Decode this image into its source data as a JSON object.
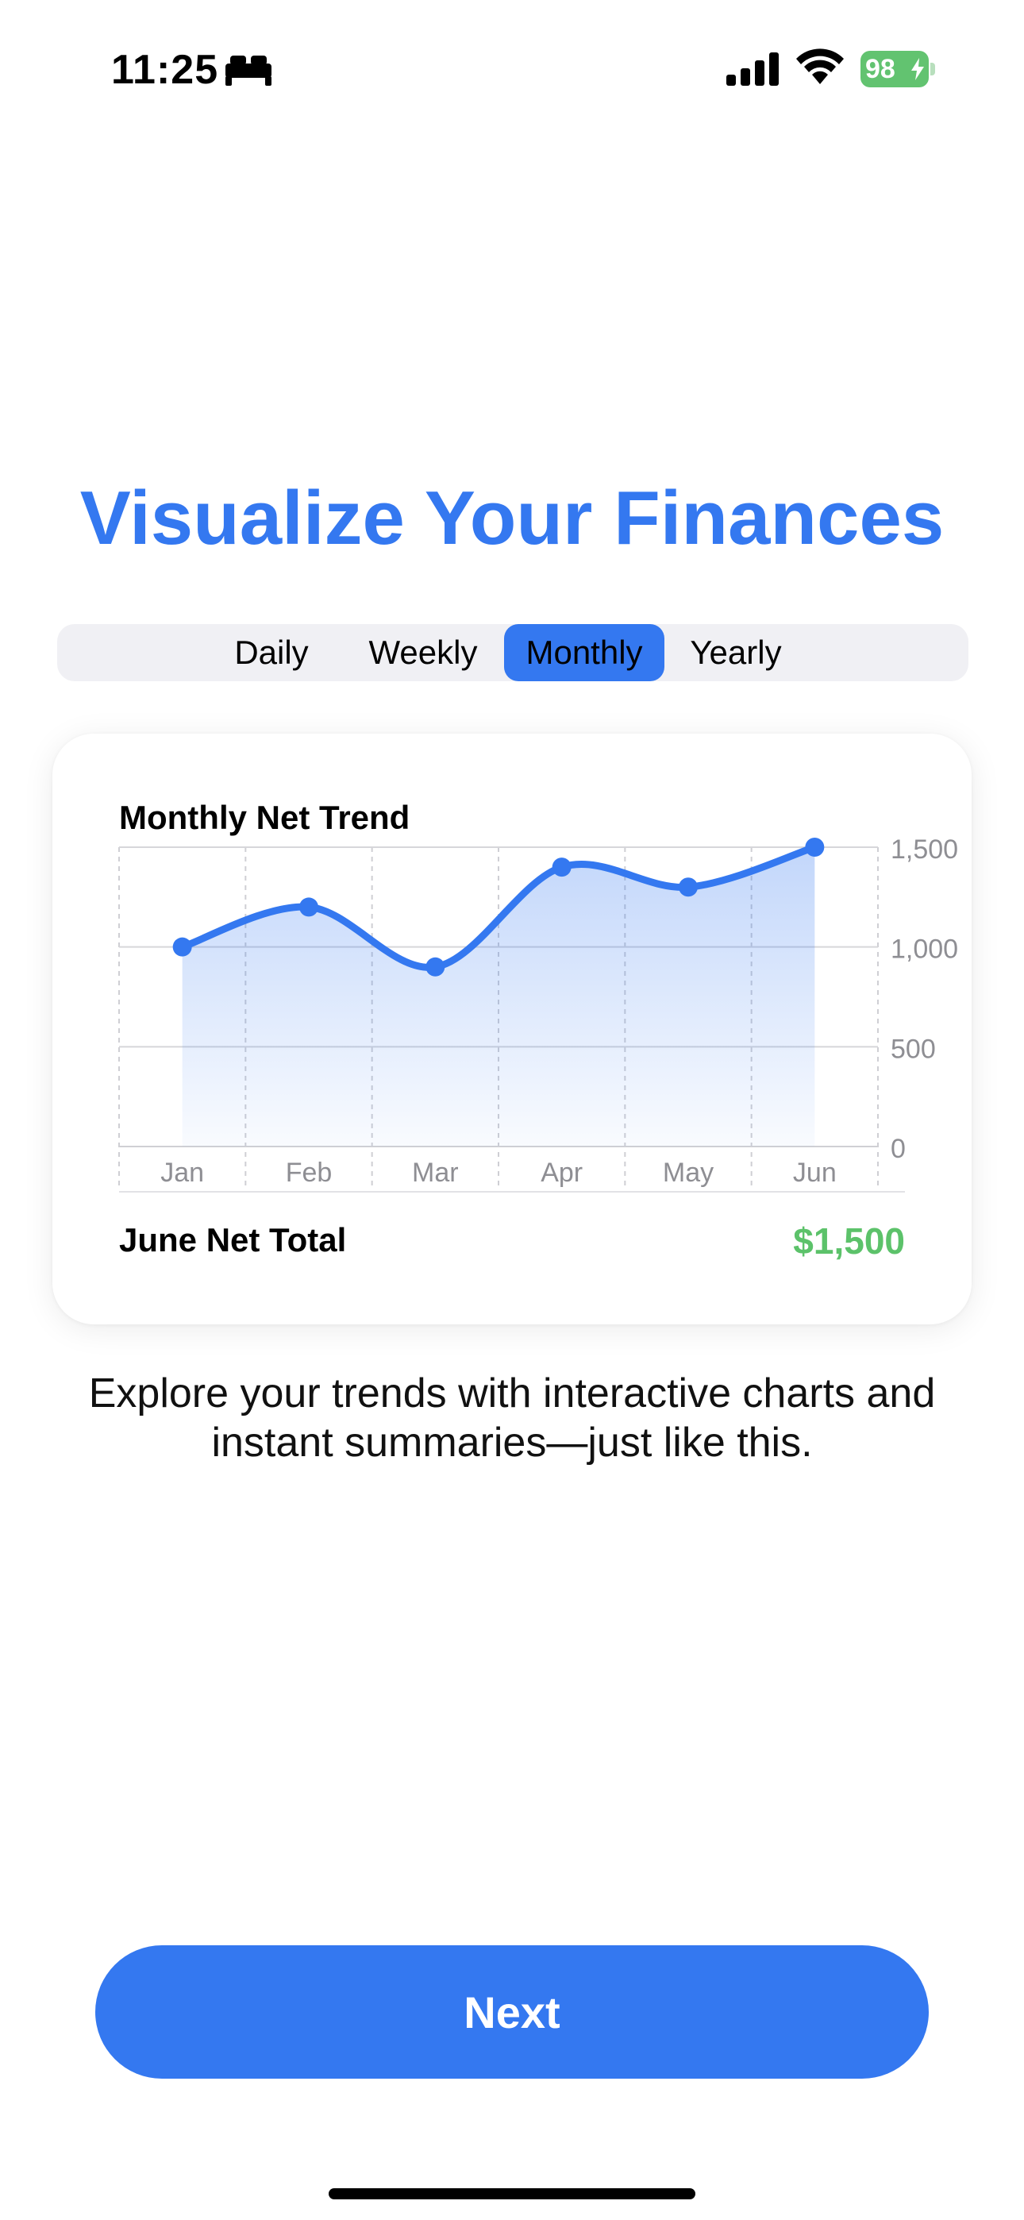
{
  "status_bar": {
    "time": "11:25",
    "battery_percent": "98",
    "focus_icon": "bed-icon",
    "signal_icon": "cellular-signal-icon",
    "wifi_icon": "wifi-icon",
    "battery_color": "#62c370"
  },
  "title": "Visualize Your Finances",
  "segments": {
    "items": [
      "Daily",
      "Weekly",
      "Monthly",
      "Yearly"
    ],
    "selected": "Monthly",
    "accent": "#3478f0"
  },
  "card": {
    "summary_label": "June Net Total",
    "summary_value": "$1,500",
    "summary_color": "#5cc26a"
  },
  "chart_data": {
    "type": "area",
    "title": "Monthly Net Trend",
    "categories": [
      "Jan",
      "Feb",
      "Mar",
      "Apr",
      "May",
      "Jun"
    ],
    "series": [
      {
        "values": [
          1000,
          1200,
          900,
          1400,
          1300,
          1500
        ]
      }
    ],
    "ylim": [
      0,
      1500
    ],
    "yticks": [
      0,
      500,
      1000,
      1500
    ],
    "ytick_labels": [
      "0",
      "500",
      "1,000",
      "1,500"
    ],
    "y_axis_side": "right",
    "grid": true,
    "line_color": "#3478f0",
    "smooth": true,
    "markers": true
  },
  "description": "Explore your trends with interactive charts and instant summaries—just like this.",
  "next_button": "Next"
}
